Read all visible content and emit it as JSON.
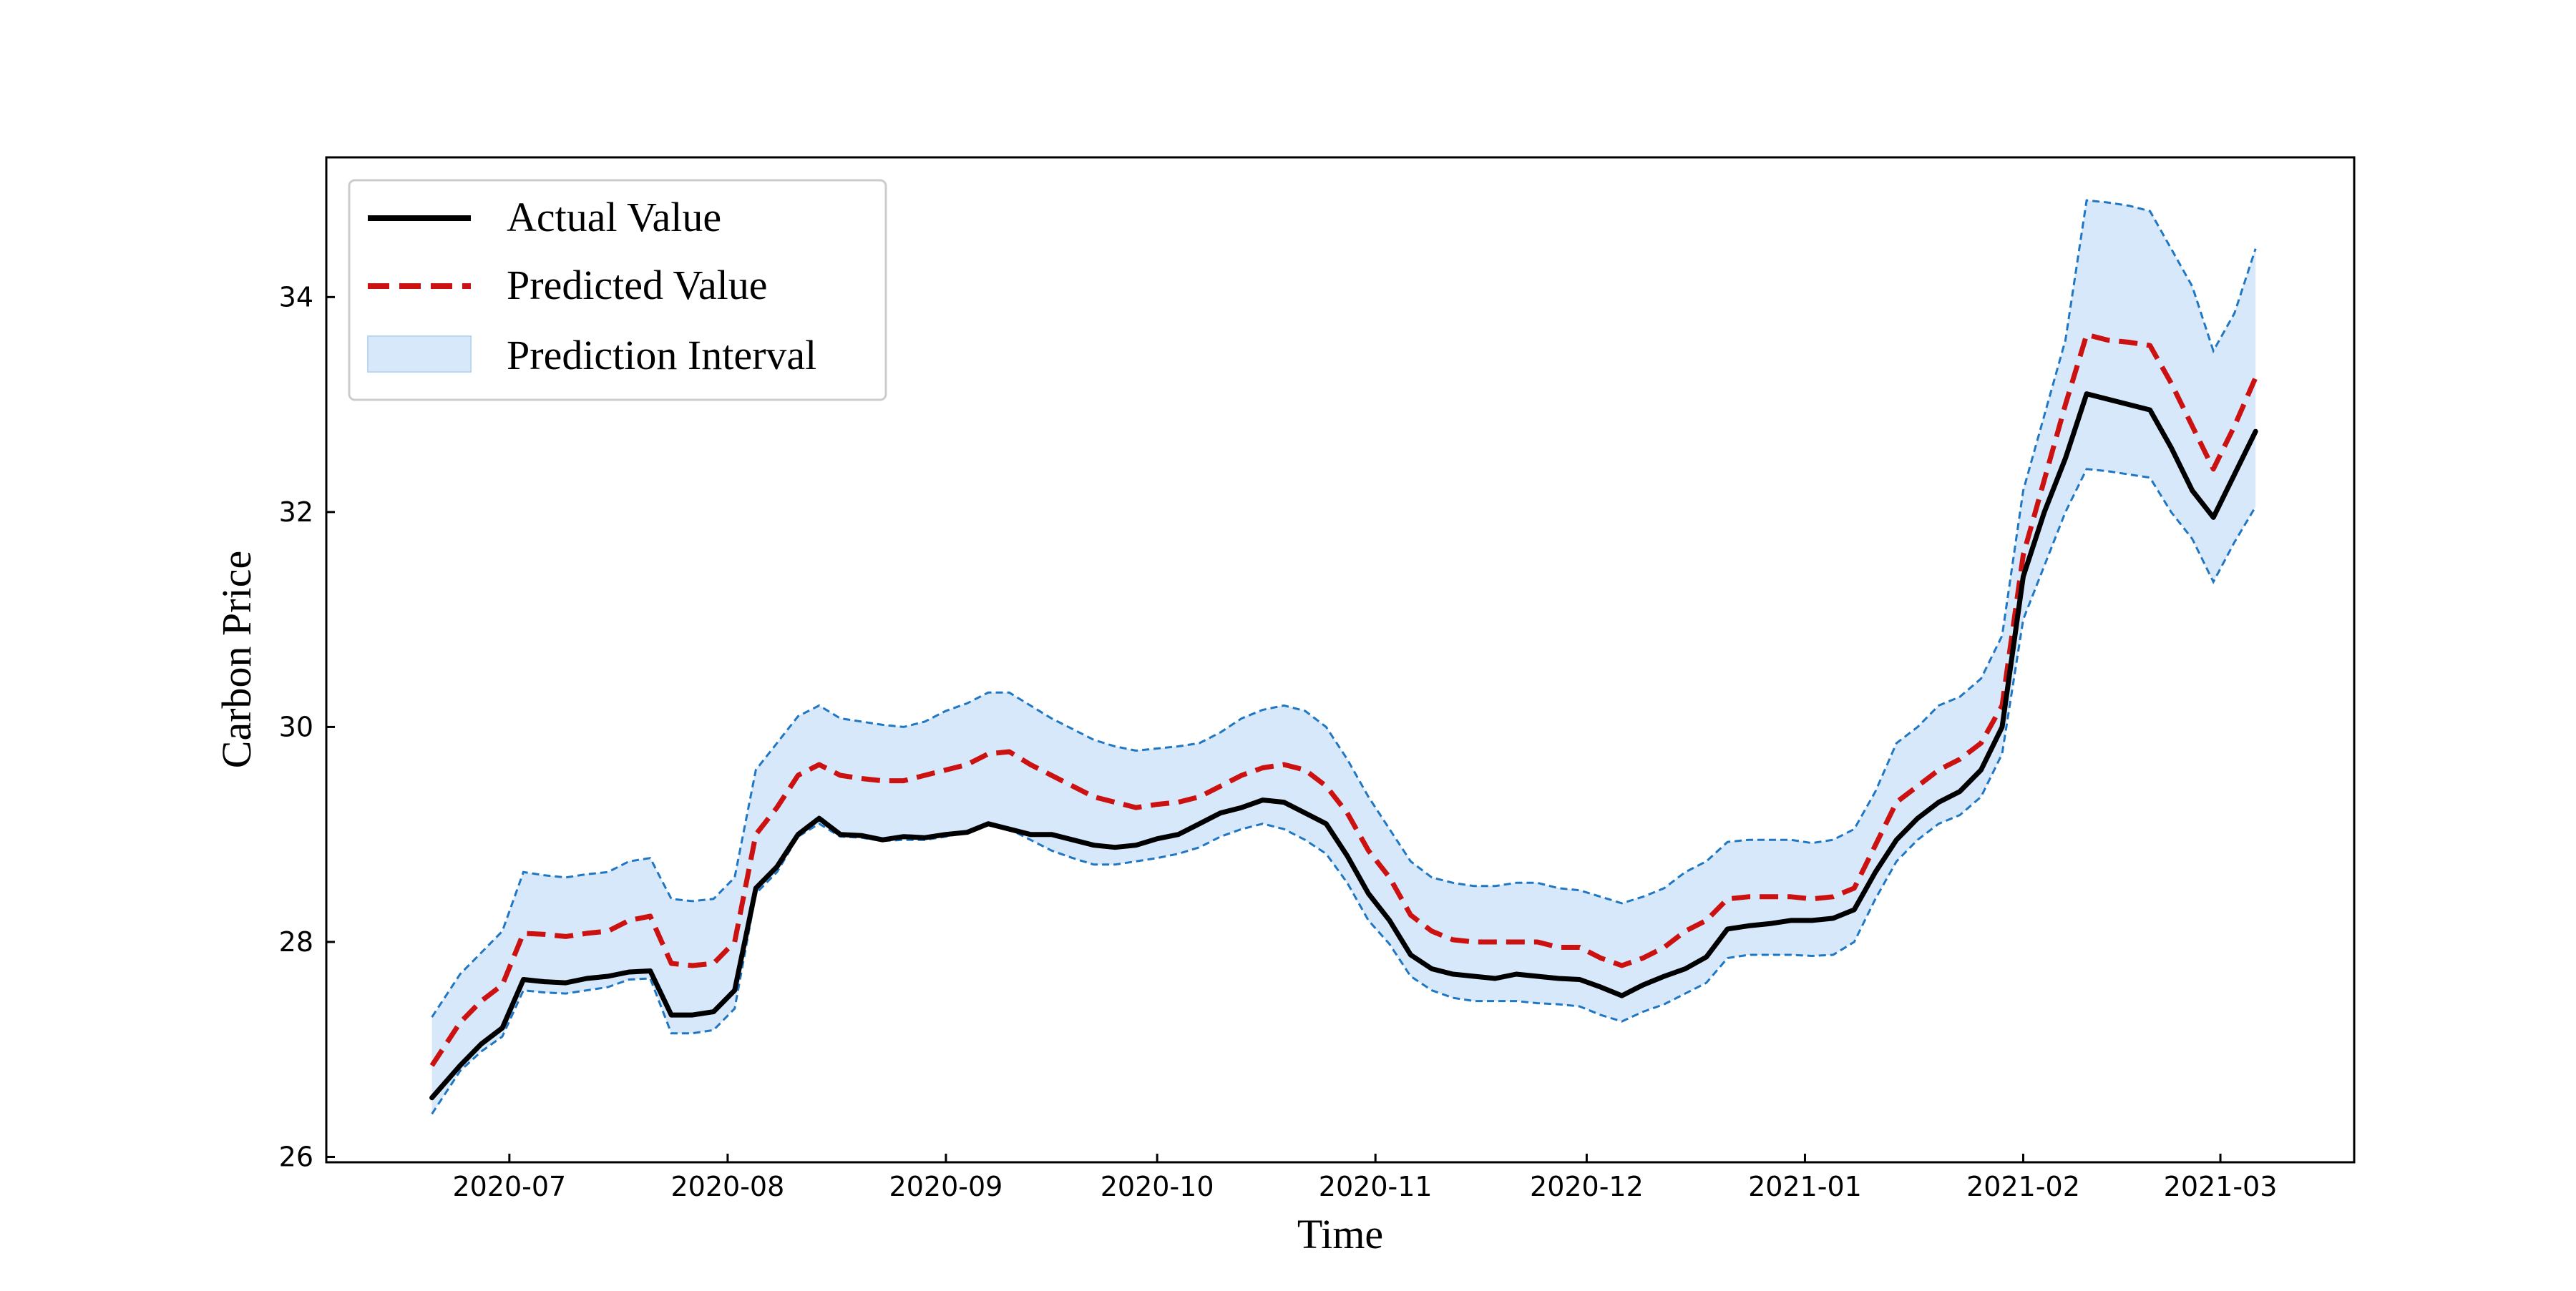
{
  "chart_data": {
    "type": "line",
    "xlabel": "Time",
    "ylabel": "Carbon Price",
    "ylim": [
      25.95,
      35.3
    ],
    "xlim": [
      "2020-06-05",
      "2021-03-20"
    ],
    "x_ticks": [
      {
        "date": "2020-07-01",
        "label": "2020-07"
      },
      {
        "date": "2020-08-01",
        "label": "2020-08"
      },
      {
        "date": "2020-09-01",
        "label": "2020-09"
      },
      {
        "date": "2020-10-01",
        "label": "2020-10"
      },
      {
        "date": "2020-11-01",
        "label": "2020-11"
      },
      {
        "date": "2020-12-01",
        "label": "2020-12"
      },
      {
        "date": "2021-01-01",
        "label": "2021-01"
      },
      {
        "date": "2021-02-01",
        "label": "2021-02"
      },
      {
        "date": "2021-03-01",
        "label": "2021-03"
      }
    ],
    "y_ticks": [
      26,
      28,
      30,
      32,
      34
    ],
    "grid": false,
    "legend": {
      "position": "top-left",
      "entries": [
        {
          "label": "Actual Value",
          "style": "solid",
          "color": "#000000"
        },
        {
          "label": "Predicted Value",
          "style": "dashed",
          "color": "#cc1111"
        },
        {
          "label": "Prediction Interval",
          "style": "fill",
          "color": "#d6e8fa"
        }
      ]
    },
    "colors": {
      "actual": "#000000",
      "predicted": "#cc1111",
      "bound": "#1f77c4",
      "band": "#d6e8fa"
    },
    "x": [
      "2020-06-20",
      "2020-06-24",
      "2020-06-27",
      "2020-06-30",
      "2020-07-03",
      "2020-07-06",
      "2020-07-09",
      "2020-07-12",
      "2020-07-15",
      "2020-07-18",
      "2020-07-21",
      "2020-07-24",
      "2020-07-27",
      "2020-07-30",
      "2020-08-02",
      "2020-08-05",
      "2020-08-08",
      "2020-08-11",
      "2020-08-14",
      "2020-08-17",
      "2020-08-20",
      "2020-08-23",
      "2020-08-26",
      "2020-08-29",
      "2020-09-01",
      "2020-09-04",
      "2020-09-07",
      "2020-09-10",
      "2020-09-13",
      "2020-09-16",
      "2020-09-19",
      "2020-09-22",
      "2020-09-25",
      "2020-09-28",
      "2020-10-01",
      "2020-10-04",
      "2020-10-07",
      "2020-10-10",
      "2020-10-13",
      "2020-10-16",
      "2020-10-19",
      "2020-10-22",
      "2020-10-25",
      "2020-10-28",
      "2020-10-31",
      "2020-11-03",
      "2020-11-06",
      "2020-11-09",
      "2020-11-12",
      "2020-11-15",
      "2020-11-18",
      "2020-11-21",
      "2020-11-24",
      "2020-11-27",
      "2020-11-30",
      "2020-12-03",
      "2020-12-06",
      "2020-12-09",
      "2020-12-12",
      "2020-12-15",
      "2020-12-18",
      "2020-12-21",
      "2020-12-24",
      "2020-12-27",
      "2020-12-30",
      "2021-01-02",
      "2021-01-05",
      "2021-01-08",
      "2021-01-11",
      "2021-01-14",
      "2021-01-17",
      "2021-01-20",
      "2021-01-23",
      "2021-01-26",
      "2021-01-29",
      "2021-02-01",
      "2021-02-04",
      "2021-02-07",
      "2021-02-10",
      "2021-02-13",
      "2021-02-16",
      "2021-02-19",
      "2021-02-22",
      "2021-02-25",
      "2021-02-28",
      "2021-03-03",
      "2021-03-06"
    ],
    "series": [
      {
        "name": "Actual Value",
        "values": [
          26.55,
          26.85,
          27.05,
          27.2,
          27.65,
          27.63,
          27.62,
          27.66,
          27.68,
          27.72,
          27.73,
          27.32,
          27.32,
          27.35,
          27.55,
          28.5,
          28.7,
          29.0,
          29.15,
          29.0,
          28.99,
          28.95,
          28.98,
          28.97,
          29.0,
          29.02,
          29.1,
          29.05,
          29.0,
          29.0,
          28.95,
          28.9,
          28.88,
          28.9,
          28.96,
          29.0,
          29.1,
          29.2,
          29.25,
          29.32,
          29.3,
          29.2,
          29.1,
          28.8,
          28.45,
          28.2,
          27.88,
          27.75,
          27.7,
          27.68,
          27.66,
          27.7,
          27.68,
          27.66,
          27.65,
          27.58,
          27.5,
          27.6,
          27.68,
          27.75,
          27.86,
          28.12,
          28.15,
          28.17,
          28.2,
          28.2,
          28.22,
          28.3,
          28.65,
          28.95,
          29.15,
          29.3,
          29.4,
          29.6,
          30.0,
          31.4,
          32.0,
          32.5,
          33.1,
          33.05,
          33.0,
          32.95,
          32.6,
          32.2,
          31.95,
          32.35,
          32.75
        ]
      },
      {
        "name": "Predicted Value",
        "values": [
          26.85,
          27.25,
          27.45,
          27.6,
          28.08,
          28.07,
          28.05,
          28.08,
          28.1,
          28.2,
          28.24,
          27.8,
          27.78,
          27.8,
          28.0,
          29.0,
          29.25,
          29.55,
          29.65,
          29.55,
          29.52,
          29.5,
          29.5,
          29.55,
          29.6,
          29.65,
          29.75,
          29.77,
          29.65,
          29.55,
          29.45,
          29.35,
          29.3,
          29.25,
          29.28,
          29.3,
          29.35,
          29.45,
          29.55,
          29.62,
          29.65,
          29.6,
          29.45,
          29.2,
          28.85,
          28.6,
          28.25,
          28.1,
          28.02,
          28.0,
          28.0,
          28.0,
          28.0,
          27.95,
          27.95,
          27.85,
          27.78,
          27.85,
          27.95,
          28.1,
          28.2,
          28.4,
          28.42,
          28.42,
          28.42,
          28.4,
          28.42,
          28.5,
          28.9,
          29.3,
          29.45,
          29.6,
          29.7,
          29.85,
          30.2,
          31.6,
          32.3,
          33.0,
          33.65,
          33.6,
          33.58,
          33.55,
          33.2,
          32.8,
          32.4,
          32.8,
          33.25
        ]
      },
      {
        "name": "Upper Bound",
        "values": [
          27.3,
          27.7,
          27.9,
          28.1,
          28.65,
          28.62,
          28.6,
          28.63,
          28.65,
          28.75,
          28.78,
          28.4,
          28.38,
          28.4,
          28.6,
          29.6,
          29.85,
          30.1,
          30.2,
          30.08,
          30.05,
          30.02,
          30.0,
          30.05,
          30.15,
          30.22,
          30.32,
          30.32,
          30.2,
          30.08,
          29.98,
          29.88,
          29.82,
          29.78,
          29.8,
          29.82,
          29.85,
          29.95,
          30.08,
          30.16,
          30.2,
          30.15,
          30.0,
          29.7,
          29.35,
          29.05,
          28.75,
          28.6,
          28.55,
          28.52,
          28.52,
          28.55,
          28.55,
          28.5,
          28.48,
          28.42,
          28.36,
          28.42,
          28.5,
          28.65,
          28.75,
          28.93,
          28.95,
          28.95,
          28.95,
          28.92,
          28.95,
          29.05,
          29.4,
          29.85,
          30.0,
          30.2,
          30.28,
          30.45,
          30.85,
          32.2,
          32.9,
          33.6,
          34.9,
          34.88,
          34.85,
          34.8,
          34.45,
          34.1,
          33.5,
          33.85,
          34.45
        ]
      },
      {
        "name": "Lower Bound",
        "values": [
          26.4,
          26.8,
          26.98,
          27.12,
          27.55,
          27.53,
          27.52,
          27.55,
          27.58,
          27.65,
          27.66,
          27.15,
          27.15,
          27.18,
          27.38,
          28.45,
          28.65,
          28.98,
          29.1,
          28.98,
          28.97,
          28.94,
          28.95,
          28.95,
          28.98,
          29.02,
          29.1,
          29.05,
          28.95,
          28.85,
          28.78,
          28.72,
          28.72,
          28.75,
          28.78,
          28.82,
          28.88,
          28.98,
          29.05,
          29.1,
          29.05,
          28.95,
          28.82,
          28.55,
          28.2,
          27.98,
          27.68,
          27.55,
          27.48,
          27.45,
          27.45,
          27.45,
          27.43,
          27.42,
          27.4,
          27.32,
          27.26,
          27.35,
          27.42,
          27.52,
          27.62,
          27.85,
          27.88,
          27.88,
          27.88,
          27.87,
          27.88,
          28.0,
          28.4,
          28.75,
          28.95,
          29.1,
          29.18,
          29.35,
          29.75,
          31.0,
          31.5,
          32.0,
          32.4,
          32.38,
          32.35,
          32.32,
          32.0,
          31.75,
          31.35,
          31.72,
          32.05
        ]
      }
    ]
  }
}
